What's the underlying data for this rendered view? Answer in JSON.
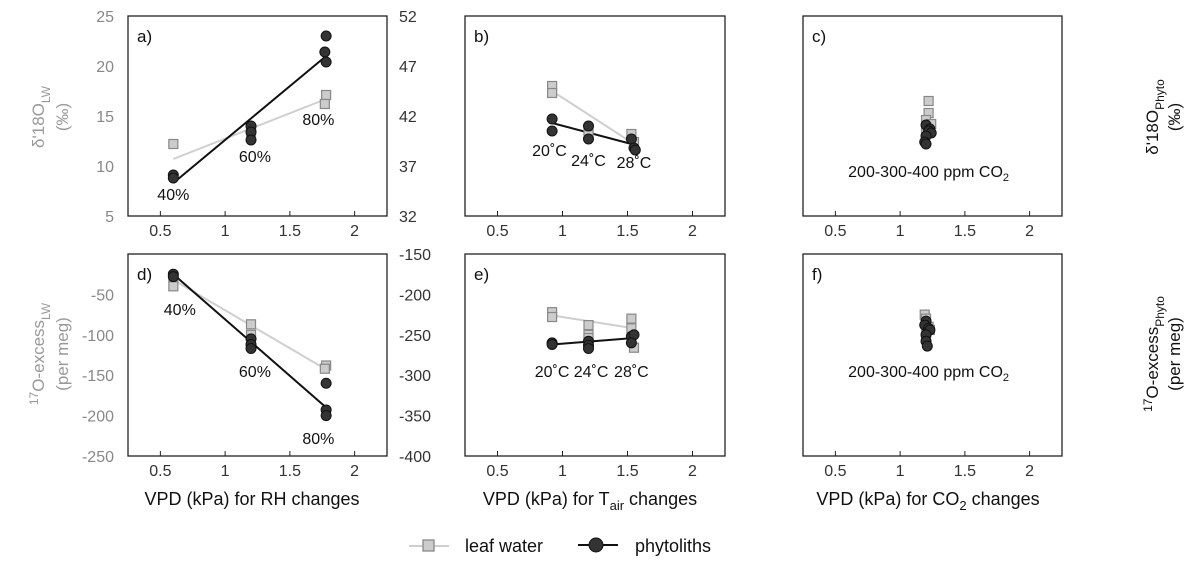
{
  "colors": {
    "leaf_water_fill": "#cccccc",
    "leaf_water_stroke": "#888888",
    "leaf_water_line": "#cfcfcf",
    "phytolith_fill": "#333333",
    "phytolith_line": "#111111",
    "left_axis_text": "#888888",
    "frame": "#222222"
  },
  "axes": {
    "left_top_label": [
      "δ'18O",
      "LW",
      "(‰)"
    ],
    "right_top_label": [
      "δ'18O",
      "Phyto",
      "(‰)"
    ],
    "left_bottom_label": [
      "17",
      "O-excess",
      "LW",
      "(per meg)"
    ],
    "right_bottom_label": [
      "17",
      "O-excess",
      "Phyto",
      "(per meg)"
    ],
    "x_labels": [
      {
        "text": "VPD (kPa) for RH changes"
      },
      {
        "pre": "VPD (kPa) for T",
        "sub": "air",
        "post": " changes"
      },
      {
        "pre": "VPD (kPa) for CO",
        "sub": "2",
        "post": " changes"
      }
    ]
  },
  "legend": {
    "items": [
      {
        "label": "leaf water",
        "marker": "square-icon"
      },
      {
        "label": "phytoliths",
        "marker": "circle-icon"
      }
    ]
  },
  "chart_data": [
    {
      "type": "scatter",
      "panel": "a)",
      "xlim": [
        0.25,
        2.25
      ],
      "x_ticks": [
        "0.5",
        "1",
        "1.5",
        "2"
      ],
      "ylim_left": [
        5,
        25
      ],
      "y_ticks_left": [
        "5",
        "10",
        "15",
        "20",
        "25"
      ],
      "ylim_right": [
        32,
        52
      ],
      "y_ticks_right": [
        "32",
        "37",
        "42",
        "47",
        "52"
      ],
      "series": [
        {
          "name": "leaf water",
          "axis": "left",
          "points": [
            [
              0.6,
              12.2
            ],
            [
              1.2,
              13.7
            ],
            [
              1.2,
              13.4
            ],
            [
              1.78,
              17.1
            ],
            [
              1.77,
              16.2
            ]
          ],
          "fit": [
            [
              0.6,
              10.7
            ],
            [
              1.78,
              16.7
            ]
          ]
        },
        {
          "name": "phytoliths",
          "axis": "left",
          "points": [
            [
              0.6,
              9.1
            ],
            [
              0.6,
              8.8
            ],
            [
              1.2,
              14.0
            ],
            [
              1.2,
              13.4
            ],
            [
              1.2,
              12.6
            ],
            [
              1.78,
              23.0
            ],
            [
              1.77,
              21.4
            ],
            [
              1.78,
              20.4
            ]
          ],
          "fit": [
            [
              0.6,
              8.3
            ],
            [
              1.78,
              21.0
            ]
          ]
        }
      ],
      "annotations": [
        {
          "text": "40%",
          "x": 0.6,
          "y": 7.2
        },
        {
          "text": "60%",
          "x": 1.23,
          "y": 11.0
        },
        {
          "text": "80%",
          "x": 1.72,
          "y": 14.7
        }
      ]
    },
    {
      "type": "scatter",
      "panel": "b)",
      "xlim": [
        0.25,
        2.25
      ],
      "x_ticks": [
        "0.5",
        "1",
        "1.5",
        "2"
      ],
      "ylim_left": [
        5,
        25
      ],
      "ylim_right": [
        32,
        52
      ],
      "series": [
        {
          "name": "leaf water",
          "axis": "left",
          "points": [
            [
              0.92,
              18.0
            ],
            [
              0.92,
              17.3
            ],
            [
              1.2,
              13.7
            ],
            [
              1.2,
              13.1
            ],
            [
              1.53,
              13.2
            ],
            [
              1.55,
              12.4
            ]
          ],
          "fit": [
            [
              0.92,
              17.5
            ],
            [
              1.55,
              12.2
            ]
          ]
        },
        {
          "name": "phytoliths",
          "axis": "left",
          "points": [
            [
              0.92,
              14.7
            ],
            [
              0.92,
              13.5
            ],
            [
              1.2,
              14.0
            ],
            [
              1.2,
              12.7
            ],
            [
              1.53,
              12.7
            ],
            [
              1.55,
              11.8
            ],
            [
              1.56,
              11.6
            ]
          ],
          "fit": [
            [
              0.92,
              14.3
            ],
            [
              1.56,
              12.1
            ]
          ]
        }
      ],
      "annotations": [
        {
          "text": "20˚C",
          "x": 0.9,
          "y": 11.6
        },
        {
          "text": "24˚C",
          "x": 1.2,
          "y": 10.6
        },
        {
          "text": "28˚C",
          "x": 1.55,
          "y": 10.4
        }
      ]
    },
    {
      "type": "scatter",
      "panel": "c)",
      "xlim": [
        0.25,
        2.25
      ],
      "x_ticks": [
        "0.5",
        "1",
        "1.5",
        "2"
      ],
      "ylim_left": [
        5,
        25
      ],
      "ylim_right": [
        32,
        52
      ],
      "series": [
        {
          "name": "leaf water",
          "axis": "right",
          "points": [
            [
              1.22,
              43.5
            ],
            [
              1.22,
              42.3
            ],
            [
              1.2,
              41.6
            ],
            [
              1.24,
              41.2
            ],
            [
              1.2,
              40.6
            ]
          ]
        },
        {
          "name": "phytoliths",
          "axis": "right",
          "points": [
            [
              1.2,
              41.1
            ],
            [
              1.23,
              40.7
            ],
            [
              1.22,
              40.5
            ],
            [
              1.24,
              40.3
            ],
            [
              1.2,
              40.0
            ],
            [
              1.19,
              39.4
            ],
            [
              1.2,
              39.2
            ]
          ]
        }
      ],
      "annotations": [
        {
          "pre": "200-300-400 ppm CO",
          "sub": "2",
          "x": 1.22,
          "y": 9.5
        }
      ]
    },
    {
      "type": "scatter",
      "panel": "d)",
      "xlim": [
        0.25,
        2.25
      ],
      "x_ticks": [
        "0.5",
        "1",
        "1.5",
        "2"
      ],
      "ylim_left": [
        -250,
        0
      ],
      "y_ticks_left": [
        "-250",
        "-200",
        "-150",
        "-100",
        "-50"
      ],
      "ylim_right": [
        -400,
        -150
      ],
      "y_ticks_right": [
        "-400",
        "-350",
        "-300",
        "-250",
        "-200",
        "-150"
      ],
      "series": [
        {
          "name": "leaf water",
          "axis": "left",
          "points": [
            [
              0.6,
              -40
            ],
            [
              0.6,
              -28
            ],
            [
              1.2,
              -87
            ],
            [
              1.2,
              -100
            ],
            [
              1.78,
              -138
            ],
            [
              1.77,
              -142
            ]
          ],
          "fit": [
            [
              0.6,
              -32
            ],
            [
              1.78,
              -143
            ]
          ]
        },
        {
          "name": "phytoliths",
          "axis": "left",
          "points": [
            [
              0.6,
              -25
            ],
            [
              0.6,
              -28
            ],
            [
              1.2,
              -105
            ],
            [
              1.2,
              -112
            ],
            [
              1.2,
              -117
            ],
            [
              1.78,
              -160
            ],
            [
              1.78,
              -193
            ],
            [
              1.78,
              -200
            ]
          ],
          "fit": [
            [
              0.6,
              -25
            ],
            [
              1.78,
              -190
            ]
          ]
        }
      ],
      "annotations": [
        {
          "text": "40%",
          "x": 0.65,
          "y": -68
        },
        {
          "text": "60%",
          "x": 1.23,
          "y": -145
        },
        {
          "text": "80%",
          "x": 1.72,
          "y": -228
        }
      ]
    },
    {
      "type": "scatter",
      "panel": "e)",
      "xlim": [
        0.25,
        2.25
      ],
      "x_ticks": [
        "0.5",
        "1",
        "1.5",
        "2"
      ],
      "ylim_left": [
        -250,
        0
      ],
      "ylim_right": [
        -400,
        -150
      ],
      "series": [
        {
          "name": "leaf water",
          "axis": "left",
          "points": [
            [
              0.92,
              -72
            ],
            [
              0.92,
              -78
            ],
            [
              1.2,
              -88
            ],
            [
              1.2,
              -100
            ],
            [
              1.2,
              -104
            ],
            [
              1.53,
              -80
            ],
            [
              1.53,
              -92
            ],
            [
              1.55,
              -116
            ]
          ],
          "fit": [
            [
              0.92,
              -76
            ],
            [
              1.55,
              -92
            ]
          ]
        },
        {
          "name": "phytoliths",
          "axis": "left",
          "points": [
            [
              0.92,
              -110
            ],
            [
              0.92,
              -112
            ],
            [
              1.2,
              -108
            ],
            [
              1.2,
              -113
            ],
            [
              1.2,
              -117
            ],
            [
              1.53,
              -102
            ],
            [
              1.55,
              -100
            ],
            [
              1.53,
              -110
            ]
          ],
          "fit": [
            [
              0.92,
              -112
            ],
            [
              1.55,
              -104
            ]
          ]
        }
      ],
      "annotations": [
        {
          "text": "20˚C",
          "x": 0.92,
          "y": -145
        },
        {
          "text": "24˚C",
          "x": 1.22,
          "y": -145
        },
        {
          "text": "28˚C",
          "x": 1.53,
          "y": -145
        }
      ]
    },
    {
      "type": "scatter",
      "panel": "f)",
      "xlim": [
        0.25,
        2.25
      ],
      "x_ticks": [
        "0.5",
        "1",
        "1.5",
        "2"
      ],
      "ylim_left": [
        -250,
        0
      ],
      "ylim_right": [
        -400,
        -150
      ],
      "series": [
        {
          "name": "leaf water",
          "axis": "right",
          "points": [
            [
              1.19,
              -225
            ],
            [
              1.2,
              -230
            ],
            [
              1.22,
              -240
            ],
            [
              1.2,
              -250
            ],
            [
              1.23,
              -244
            ]
          ]
        },
        {
          "name": "phytoliths",
          "axis": "right",
          "points": [
            [
              1.2,
              -233
            ],
            [
              1.19,
              -238
            ],
            [
              1.22,
              -242
            ],
            [
              1.23,
              -244
            ],
            [
              1.2,
              -250
            ],
            [
              1.2,
              -258
            ],
            [
              1.21,
              -264
            ]
          ]
        }
      ],
      "annotations": [
        {
          "pre": "200-300-400 ppm CO",
          "sub": "2",
          "x": 1.22,
          "y": -145
        }
      ]
    }
  ]
}
